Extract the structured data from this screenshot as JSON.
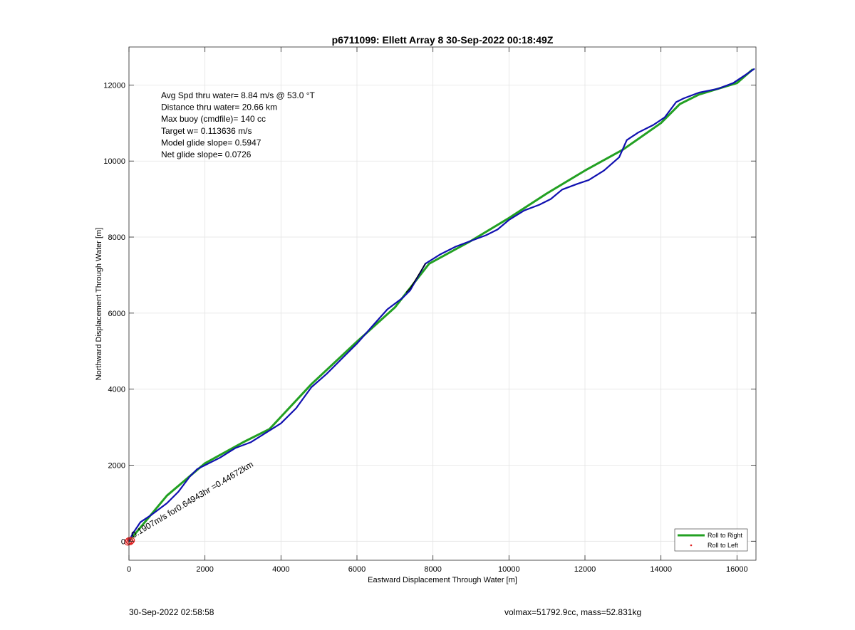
{
  "chart_data": {
    "type": "line",
    "title": "p6711099: Ellett Array 8 30-Sep-2022 00:18:49Z",
    "xlabel": "Eastward Displacement Through Water [m]",
    "ylabel": "Northward Displacement Through Water [m]",
    "xlim": [
      0,
      16500
    ],
    "ylim": [
      -500,
      13000
    ],
    "xticks": [
      0,
      2000,
      4000,
      6000,
      8000,
      10000,
      12000,
      14000,
      16000
    ],
    "yticks": [
      0,
      2000,
      4000,
      6000,
      8000,
      10000,
      12000
    ],
    "grid": true,
    "legend": {
      "placement": "bottom-right",
      "entries": [
        {
          "label": "Roll to Right",
          "color": "#22a022",
          "style": "line"
        },
        {
          "label": "Roll to Left",
          "color": "#e02020",
          "style": "dot"
        }
      ]
    },
    "info_lines": [
      "Avg Spd thru water=  8.84 m/s @  53.0 °T",
      "Distance thru water= 20.66 km",
      "Max buoy (cmdfile)= 140 cc",
      "Target w= 0.113636 m/s",
      "Model glide slope= 0.5947",
      "Net glide slope= 0.0726"
    ],
    "annotation": {
      "text": "0.1907m/s for0.64943hr =0.44672km",
      "x": 120,
      "y": 80
    },
    "series": [
      {
        "role": "heading-track",
        "color": "#22a022",
        "x": [
          0,
          1000,
          2000,
          3000,
          3700,
          4800,
          6000,
          7000,
          7900,
          9000,
          10000,
          11000,
          12000,
          13000,
          14000,
          14500,
          15000,
          15500,
          16000,
          16400
        ],
        "y": [
          0,
          1200,
          2050,
          2600,
          2950,
          4130,
          5250,
          6150,
          7300,
          7900,
          8500,
          9150,
          9750,
          10300,
          11000,
          11500,
          11750,
          11900,
          12050,
          12400
        ]
      },
      {
        "role": "glider-track",
        "color": "#1010b0",
        "x": [
          0,
          100,
          300,
          600,
          1000,
          1300,
          1600,
          1800,
          2000,
          2400,
          2800,
          3200,
          3600,
          4000,
          4400,
          4800,
          5200,
          5600,
          6000,
          6400,
          6800,
          7200,
          7400,
          7800,
          8200,
          8600,
          9000,
          9400,
          9700,
          10000,
          10400,
          10800,
          11100,
          11400,
          11800,
          12100,
          12500,
          12900,
          13100,
          13400,
          13800,
          14100,
          14400,
          14600,
          15000,
          15500,
          15900,
          16200,
          16450
        ],
        "y": [
          0,
          200,
          500,
          700,
          1000,
          1300,
          1700,
          1900,
          2000,
          2200,
          2450,
          2600,
          2850,
          3100,
          3500,
          4050,
          4400,
          4800,
          5200,
          5650,
          6100,
          6400,
          6600,
          7300,
          7550,
          7750,
          7900,
          8050,
          8200,
          8450,
          8700,
          8850,
          9000,
          9250,
          9400,
          9500,
          9750,
          10100,
          10550,
          10750,
          10950,
          11150,
          11550,
          11650,
          11800,
          11900,
          12050,
          12250,
          12420
        ]
      },
      {
        "role": "connector",
        "color": "#000000",
        "x": [
          7300,
          7400,
          7800
        ],
        "y": [
          6550,
          6650,
          7300
        ]
      },
      {
        "role": "dive-markers",
        "color": "#e02020",
        "x": [
          -30,
          0,
          30,
          60
        ],
        "y": [
          -20,
          10,
          -10,
          20
        ]
      }
    ]
  },
  "footer": {
    "timestamp": "30-Sep-2022 02:58:58",
    "vol_mass": "volmax=51792.9cc, mass=52.831kg"
  }
}
